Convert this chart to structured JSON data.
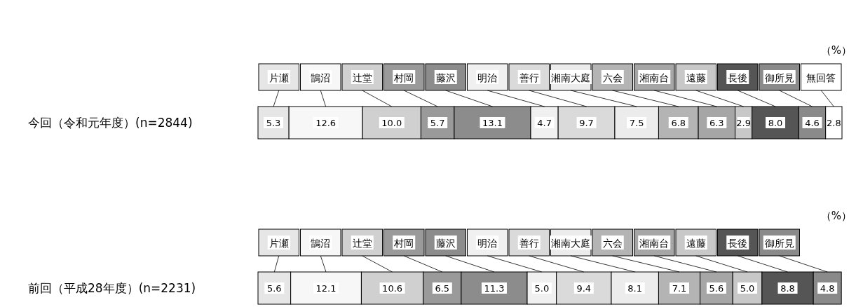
{
  "chart_data": {
    "type": "bar",
    "orientation": "horizontal",
    "stacked": true,
    "legend": "top",
    "categories": [
      "今回（令和元年度）(n=2844)",
      "前回（平成28年度）(n=2231)"
    ],
    "xlim": [
      0,
      100
    ],
    "tick_labels": "y",
    "annotations": [
      "（%）",
      "（%）"
    ],
    "series": [
      {
        "name": "片瀬",
        "color": "#e6e6e6",
        "values": [
          5.3,
          5.6
        ],
        "value_labels": [
          "5.3",
          "5.6"
        ]
      },
      {
        "name": "鵠沼",
        "color": "#f7f7f7",
        "values": [
          12.6,
          12.1
        ],
        "value_labels": [
          "12.6",
          "12.1"
        ]
      },
      {
        "name": "辻堂",
        "color": "#d0d0d0",
        "values": [
          10.0,
          10.6
        ],
        "value_labels": [
          "10.0",
          "10.6"
        ]
      },
      {
        "name": "村岡",
        "color": "#9a9a9a",
        "values": [
          5.7,
          6.5
        ],
        "value_labels": [
          "5.7",
          "6.5"
        ]
      },
      {
        "name": "藤沢",
        "color": "#8c8c8c",
        "values": [
          13.1,
          11.3
        ],
        "value_labels": [
          "13.1",
          "11.3"
        ]
      },
      {
        "name": "明治",
        "color": "#f0f0f0",
        "values": [
          4.7,
          5.0
        ],
        "value_labels": [
          "4.7",
          "5.0"
        ]
      },
      {
        "name": "善行",
        "color": "#dadada",
        "values": [
          9.7,
          9.4
        ],
        "value_labels": [
          "9.7",
          "9.4"
        ]
      },
      {
        "name": "湘南大庭",
        "color": "#ececec",
        "values": [
          7.5,
          8.1
        ],
        "value_labels": [
          "7.5",
          "8.1"
        ]
      },
      {
        "name": "六会",
        "color": "#b4b4b4",
        "values": [
          6.8,
          7.1
        ],
        "value_labels": [
          "6.8",
          "7.1"
        ]
      },
      {
        "name": "湘南台",
        "color": "#a6a6a6",
        "values": [
          6.3,
          5.6
        ],
        "value_labels": [
          "6.3",
          "5.6"
        ]
      },
      {
        "name": "遠藤",
        "color": "#c8c8c8",
        "values": [
          2.9,
          5.0
        ],
        "value_labels": [
          "2.9",
          "5.0"
        ]
      },
      {
        "name": "長後",
        "color": "#555555",
        "values": [
          8.0,
          8.8
        ],
        "value_labels": [
          "8.0",
          "8.8"
        ]
      },
      {
        "name": "御所見",
        "color": "#8a8a8a",
        "values": [
          4.6,
          4.8
        ],
        "value_labels": [
          "4.6",
          "4.8"
        ]
      },
      {
        "name": "無回答",
        "color": "#ffffff",
        "values": [
          2.8,
          null
        ],
        "value_labels": [
          "2.8",
          null
        ]
      }
    ]
  }
}
